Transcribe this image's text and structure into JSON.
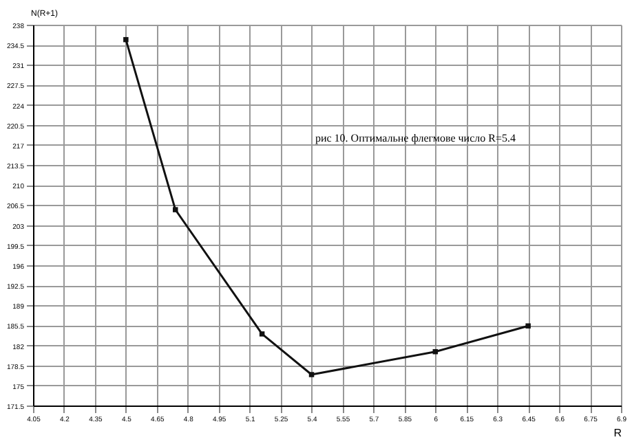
{
  "chart_data": {
    "type": "line",
    "xlabel": "R",
    "ylabel": "N(R+1)",
    "annotations": [
      "рис 10. Оптимальне флегмове число R=5.4"
    ],
    "x": [
      4.5,
      4.74,
      5.16,
      5.4,
      6.0,
      6.45
    ],
    "series": [
      {
        "color": "#111111",
        "values": [
          235.4,
          205.7,
          184.0,
          176.9,
          180.9,
          185.4
        ]
      }
    ],
    "xlim": [
      4.05,
      6.9
    ],
    "xticks": [
      4.05,
      4.2,
      4.35,
      4.5,
      4.65,
      4.8,
      4.95,
      5.1,
      5.25,
      5.4,
      5.55,
      5.7,
      5.85,
      6,
      6.15,
      6.3,
      6.45,
      6.6,
      6.75,
      6.9
    ],
    "ylim": [
      171.5,
      238
    ],
    "yticks": [
      171.5,
      175,
      178.5,
      182,
      185.5,
      189,
      192.5,
      196,
      199.5,
      203,
      206.5,
      210,
      213.5,
      217,
      220.5,
      224,
      227.5,
      231,
      234.5,
      238
    ],
    "grid": true,
    "marker": "square",
    "line_style": "solid",
    "legend": false
  }
}
